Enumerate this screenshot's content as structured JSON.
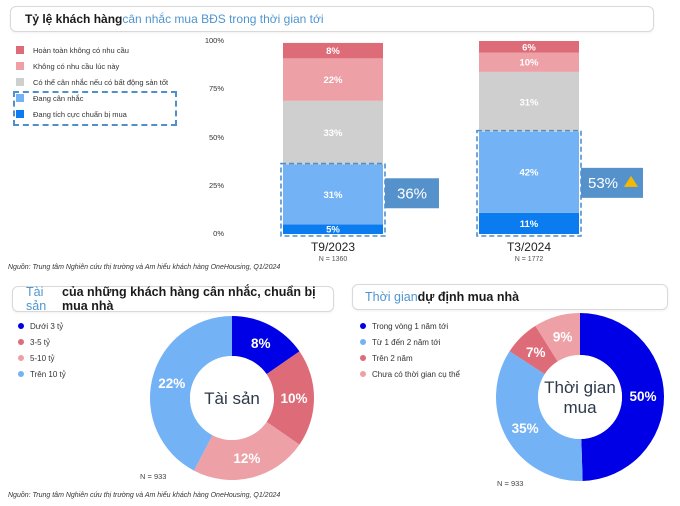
{
  "panel1": {
    "title_plain": "Tỷ lệ khách hàng ",
    "title_highlight": "cân nhắc mua BĐS trong thời gian tới",
    "source": "Nguồn: Trung tâm Nghiên cứu thị trường và Am hiểu khách hàng OneHousing, Q1/2024"
  },
  "panel2": {
    "title_highlight": "Tài sản",
    "title_plain": " của những khách hàng cân nhắc, chuẩn bị mua nhà",
    "center_label": "Tài sản",
    "n_label": "N = 933",
    "source": "Nguồn: Trung tâm Nghiên cứu thị trường và Am hiểu khách hàng OneHousing, Q1/2024"
  },
  "panel3": {
    "title_highlight": "Thời gian",
    "title_plain": " dự định mua nhà",
    "center_label_line1": "Thời gian",
    "center_label_line2": "mua",
    "n_label": "N = 933"
  },
  "colors": {
    "dark_red": "#de6b78",
    "light_red": "#eda0a6",
    "grey": "#cfcfcf",
    "light_blue": "#74b2f6",
    "blue": "#0a7cf0",
    "navy": "#0000e6",
    "callout": "#5592cc",
    "accent_title": "#4f95d0",
    "warning": "#f5b800"
  },
  "chart_data": [
    {
      "type": "bar",
      "stacked": true,
      "title": "Tỷ lệ khách hàng cân nhắc mua BĐS trong thời gian tới",
      "categories": [
        "T9/2023",
        "T3/2024"
      ],
      "category_n": [
        "N = 1360",
        "N = 1772"
      ],
      "y_ticks": [
        "0%",
        "25%",
        "50%",
        "75%",
        "100%"
      ],
      "ylim": [
        0,
        100
      ],
      "legend_position": "top-left",
      "series": [
        {
          "name": "Đang tích cực chuẩn bị mua",
          "color": "#0a7cf0",
          "values": [
            5,
            11
          ],
          "labels": [
            "5%",
            "11%"
          ]
        },
        {
          "name": "Đang cân nhắc",
          "color": "#74b2f6",
          "values": [
            31,
            42
          ],
          "labels": [
            "31%",
            "42%"
          ]
        },
        {
          "name": "Có thể cân nhắc nếu có bất động sản tốt",
          "color": "#cfcfcf",
          "values": [
            33,
            31
          ],
          "labels": [
            "33%",
            "31%"
          ]
        },
        {
          "name": "Không có nhu cầu lúc này",
          "color": "#eda0a6",
          "values": [
            22,
            10
          ],
          "labels": [
            "22%",
            "10%"
          ]
        },
        {
          "name": "Hoàn toàn không có nhu cầu",
          "color": "#de6b78",
          "values": [
            8,
            6
          ],
          "labels": [
            "8%",
            "6%"
          ]
        }
      ],
      "legend_order": [
        "Hoàn toàn không có nhu cầu",
        "Không có nhu cầu lúc này",
        "Có thể cân nhắc nếu có bất động sản tốt",
        "Đang cân nhắc",
        "Đang tích cực chuẩn bị mua"
      ],
      "callouts": [
        "36%",
        "53%"
      ],
      "callout_up_indicator": [
        false,
        true
      ]
    },
    {
      "type": "pie",
      "donut": true,
      "title": "Tài sản của những khách hàng cân nhắc, chuẩn bị mua nhà",
      "legend_position": "left",
      "slices": [
        {
          "name": "Dưới 3 tỷ",
          "value": 8,
          "label": "8%",
          "color": "#0000e6"
        },
        {
          "name": "3-5 tỷ",
          "value": 10,
          "label": "10%",
          "color": "#de6b78"
        },
        {
          "name": "5-10 tỷ",
          "value": 12,
          "label": "12%",
          "color": "#eda0a6"
        },
        {
          "name": "Trên 10 tỷ",
          "value": 22,
          "label": "22%",
          "color": "#74b2f6"
        }
      ]
    },
    {
      "type": "pie",
      "donut": true,
      "title": "Thời gian dự định mua nhà",
      "legend_position": "left",
      "slices": [
        {
          "name": "Trong vòng 1 năm tới",
          "value": 50,
          "label": "50%",
          "color": "#0000e6"
        },
        {
          "name": "Từ 1 đến 2 năm tới",
          "value": 35,
          "label": "35%",
          "color": "#74b2f6"
        },
        {
          "name": "Trên 2 năm",
          "value": 7,
          "label": "7%",
          "color": "#de6b78"
        },
        {
          "name": "Chưa có thời gian cụ thể",
          "value": 9,
          "label": "9%",
          "color": "#eda0a6"
        }
      ]
    }
  ]
}
